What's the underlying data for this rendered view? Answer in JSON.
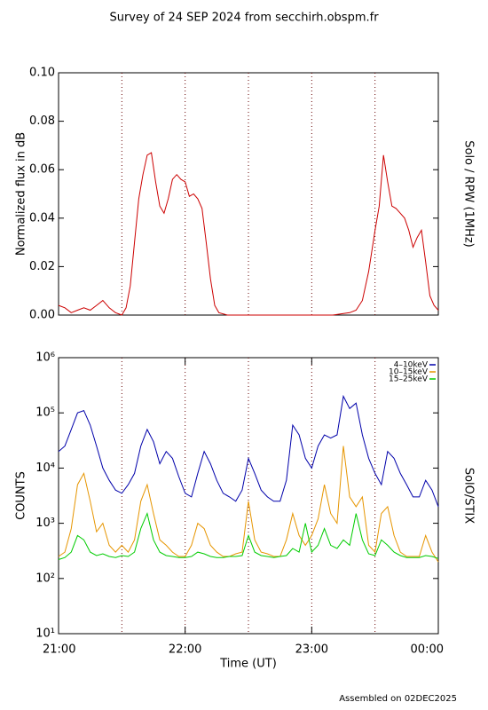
{
  "title": "Survey of 24 SEP 2024 from secchirh.obspm.fr",
  "footer": "Assembled on 02DEC2025",
  "chart_data": [
    {
      "type": "line",
      "ylabel": "Normalized flux in dB",
      "right_label": "Solo / RPW (1MHz)",
      "xlim": [
        "21:00",
        "00:00"
      ],
      "ylim": [
        0,
        0.1
      ],
      "yticks": [
        {
          "value": 0,
          "label": "0.00"
        },
        0.02,
        0.04,
        0.06,
        0.08,
        {
          "value": 0.1,
          "label": "0.10"
        }
      ],
      "vlines": [
        "21:30",
        "22:00",
        "22:30",
        "23:00",
        "23:30"
      ],
      "x": [
        "21:00",
        "21:03",
        "21:06",
        "21:09",
        "21:12",
        "21:15",
        "21:18",
        "21:21",
        "21:24",
        "21:27",
        "21:30",
        "21:32",
        "21:34",
        "21:36",
        "21:38",
        "21:40",
        "21:42",
        "21:44",
        "21:46",
        "21:48",
        "21:50",
        "21:52",
        "21:54",
        "21:56",
        "21:58",
        "22:00",
        "22:02",
        "22:04",
        "22:06",
        "22:08",
        "22:10",
        "22:12",
        "22:14",
        "22:16",
        "22:20",
        "22:30",
        "22:40",
        "22:50",
        "23:00",
        "23:10",
        "23:18",
        "23:21",
        "23:24",
        "23:27",
        "23:30",
        "23:32",
        "23:34",
        "23:36",
        "23:38",
        "23:40",
        "23:42",
        "23:44",
        "23:46",
        "23:48",
        "23:50",
        "23:52",
        "23:54",
        "23:56",
        "23:58",
        "00:00"
      ],
      "series": [
        {
          "color": "#cc0000",
          "values": [
            0.004,
            0.003,
            0.001,
            0.002,
            0.003,
            0.002,
            0.004,
            0.006,
            0.003,
            0.001,
            0,
            0.003,
            0.012,
            0.03,
            0.048,
            0.058,
            0.066,
            0.067,
            0.055,
            0.045,
            0.042,
            0.048,
            0.056,
            0.058,
            0.056,
            0.055,
            0.049,
            0.05,
            0.048,
            0.044,
            0.03,
            0.015,
            0.004,
            0.001,
            0,
            0,
            0,
            0,
            0,
            0,
            0.001,
            0.002,
            0.006,
            0.018,
            0.035,
            0.045,
            0.066,
            0.055,
            0.045,
            0.044,
            0.042,
            0.04,
            0.035,
            0.028,
            0.032,
            0.035,
            0.022,
            0.008,
            0.004,
            0.002
          ]
        }
      ]
    },
    {
      "type": "line",
      "log": true,
      "ylabel": "COUNTS",
      "right_label": "SolO/STIX",
      "xlabel": "Time (UT)",
      "legend": "upper right",
      "xlim": [
        "21:00",
        "00:00"
      ],
      "xticks": [
        "21:00",
        "22:00",
        "23:00",
        "00:00"
      ],
      "ylim": [
        10,
        1000000
      ],
      "yticks": [
        {
          "value": 10,
          "label": "10¹"
        },
        {
          "value": 100,
          "label": "10²"
        },
        {
          "value": 1000,
          "label": "10³"
        },
        {
          "value": 10000,
          "label": "10⁴"
        },
        {
          "value": 100000,
          "label": "10⁵"
        },
        {
          "value": 1000000,
          "label": "10⁶"
        }
      ],
      "vlines": [
        "21:30",
        "22:00",
        "22:30",
        "23:00",
        "23:30"
      ],
      "x": [
        "21:00",
        "21:03",
        "21:06",
        "21:09",
        "21:12",
        "21:15",
        "21:18",
        "21:21",
        "21:24",
        "21:27",
        "21:30",
        "21:33",
        "21:36",
        "21:39",
        "21:42",
        "21:45",
        "21:48",
        "21:51",
        "21:54",
        "21:57",
        "22:00",
        "22:03",
        "22:06",
        "22:09",
        "22:12",
        "22:15",
        "22:18",
        "22:21",
        "22:24",
        "22:27",
        "22:30",
        "22:33",
        "22:36",
        "22:39",
        "22:42",
        "22:45",
        "22:48",
        "22:51",
        "22:54",
        "22:57",
        "23:00",
        "23:03",
        "23:06",
        "23:09",
        "23:12",
        "23:15",
        "23:18",
        "23:21",
        "23:24",
        "23:27",
        "23:30",
        "23:33",
        "23:36",
        "23:39",
        "23:42",
        "23:45",
        "23:48",
        "23:51",
        "23:54",
        "23:57",
        "00:00"
      ],
      "series": [
        {
          "name": "4–10keV",
          "color": "#0000aa",
          "values": [
            20000,
            25000,
            50000,
            100000,
            110000,
            60000,
            25000,
            10000,
            6000,
            4000,
            3500,
            5000,
            8000,
            25000,
            50000,
            30000,
            12000,
            20000,
            15000,
            7000,
            3500,
            3000,
            8000,
            20000,
            12000,
            6000,
            3500,
            3000,
            2500,
            4000,
            15000,
            8000,
            4000,
            3000,
            2500,
            2500,
            6000,
            60000,
            40000,
            15000,
            10000,
            25000,
            40000,
            35000,
            40000,
            200000,
            120000,
            150000,
            40000,
            15000,
            8000,
            5000,
            20000,
            15000,
            8000,
            5000,
            3000,
            3000,
            6000,
            4000,
            2000
          ]
        },
        {
          "name": "10–15keV",
          "color": "#e69500",
          "values": [
            250,
            300,
            800,
            5000,
            8000,
            2500,
            700,
            1000,
            400,
            300,
            400,
            300,
            500,
            2500,
            5000,
            1500,
            500,
            400,
            300,
            250,
            250,
            400,
            1000,
            800,
            400,
            300,
            250,
            250,
            280,
            300,
            2500,
            500,
            300,
            280,
            250,
            250,
            500,
            1500,
            600,
            400,
            600,
            1200,
            5000,
            1500,
            1000,
            25000,
            3000,
            2000,
            3000,
            400,
            300,
            1500,
            2000,
            600,
            300,
            250,
            250,
            250,
            600,
            300,
            200
          ]
        },
        {
          "name": "15–25keV",
          "color": "#00cc00",
          "values": [
            220,
            240,
            300,
            600,
            500,
            300,
            260,
            280,
            250,
            240,
            260,
            250,
            300,
            800,
            1500,
            500,
            300,
            260,
            250,
            240,
            240,
            250,
            300,
            280,
            250,
            240,
            240,
            250,
            250,
            260,
            600,
            300,
            260,
            250,
            240,
            250,
            260,
            350,
            300,
            1000,
            300,
            400,
            800,
            400,
            350,
            500,
            400,
            1500,
            500,
            280,
            260,
            500,
            400,
            300,
            260,
            240,
            240,
            240,
            260,
            250,
            230
          ]
        }
      ]
    }
  ]
}
